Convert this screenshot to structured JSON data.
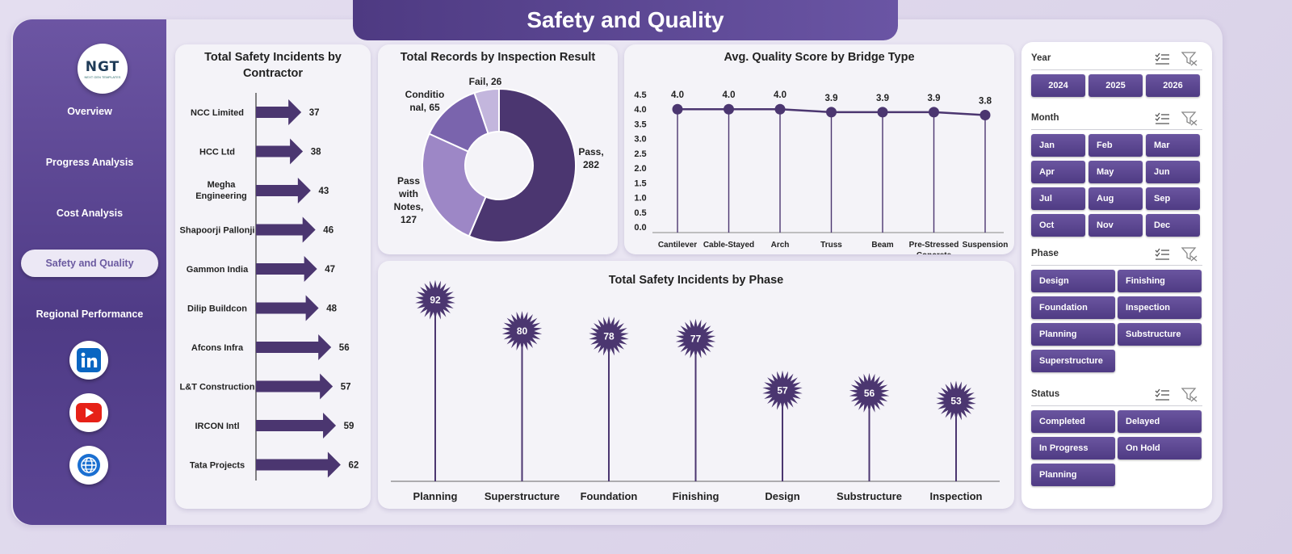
{
  "page_title": "Safety and Quality",
  "brand": {
    "logo_text": "NGT",
    "logo_subtext": "NEXT GEN TEMPLATES"
  },
  "nav": [
    {
      "label": "Overview",
      "active": false
    },
    {
      "label": "Progress Analysis",
      "active": false
    },
    {
      "label": "Cost Analysis",
      "active": false
    },
    {
      "label": "Safety and Quality",
      "active": true
    },
    {
      "label": "Regional Performance",
      "active": false
    }
  ],
  "social_icons": [
    "linkedin-icon",
    "youtube-icon",
    "globe-icon"
  ],
  "colors": {
    "primary": "#4e3a82",
    "accent": "#6a55a4",
    "bg": "#e9e5f2",
    "series_dark": "#4b3670",
    "series_mid": "#7a64ad",
    "series_light": "#9d87c6",
    "series_lightest": "#c3b6dd"
  },
  "cards": {
    "contractor_title": "Total Safety Incidents by Contractor",
    "inspection_title": "Total Records by Inspection Result",
    "quality_title": "Avg. Quality Score by Bridge Type",
    "phase_title": "Total Safety Incidents by Phase"
  },
  "chart_data": [
    {
      "type": "bar",
      "title": "Total Safety Incidents by Contractor",
      "categories": [
        "NCC Limited",
        "HCC Ltd",
        "Megha Engineering",
        "Shapoorji Pallonji",
        "Gammon India",
        "Dilip Buildcon",
        "Afcons Infra",
        "L&T Construction",
        "IRCON Intl",
        "Tata Projects"
      ],
      "values": [
        37,
        38,
        43,
        46,
        47,
        48,
        56,
        57,
        59,
        62
      ]
    },
    {
      "type": "pie",
      "title": "Total Records by Inspection Result",
      "slices": [
        {
          "label": "Pass",
          "value": 282
        },
        {
          "label": "Pass with Notes",
          "value": 127
        },
        {
          "label": "Conditional",
          "value": 65
        },
        {
          "label": "Fail",
          "value": 26
        }
      ],
      "data_labels": [
        "Pass, 282",
        "Pass with Notes, 127",
        "Conditional, 65",
        "Fail, 26"
      ]
    },
    {
      "type": "line",
      "title": "Avg. Quality Score by Bridge Type",
      "categories": [
        "Cantilever",
        "Cable-Stayed",
        "Arch",
        "Truss",
        "Beam",
        "Pre-Stressed Concrete",
        "Suspension"
      ],
      "values": [
        4.0,
        4.0,
        4.0,
        3.9,
        3.9,
        3.9,
        3.8
      ],
      "ylim": [
        0.0,
        4.5
      ],
      "yticks": [
        "0.0",
        "0.5",
        "1.0",
        "1.5",
        "2.0",
        "2.5",
        "3.0",
        "3.5",
        "4.0",
        "4.5"
      ]
    },
    {
      "type": "bar",
      "title": "Total Safety Incidents by Phase",
      "categories": [
        "Planning",
        "Superstructure",
        "Foundation",
        "Finishing",
        "Design",
        "Substructure",
        "Inspection"
      ],
      "values": [
        92,
        80,
        78,
        77,
        57,
        56,
        53
      ]
    }
  ],
  "slicers": [
    {
      "label": "Year",
      "items": [
        "2024",
        "2025",
        "2026"
      ]
    },
    {
      "label": "Month",
      "items": [
        "Jan",
        "Feb",
        "Mar",
        "Apr",
        "May",
        "Jun",
        "Jul",
        "Aug",
        "Sep",
        "Oct",
        "Nov",
        "Dec"
      ]
    },
    {
      "label": "Phase",
      "items": [
        "Design",
        "Finishing",
        "Foundation",
        "Inspection",
        "Planning",
        "Substructure",
        "Superstructure"
      ]
    },
    {
      "label": "Status",
      "items": [
        "Completed",
        "Delayed",
        "In Progress",
        "On Hold",
        "Planning"
      ]
    }
  ]
}
